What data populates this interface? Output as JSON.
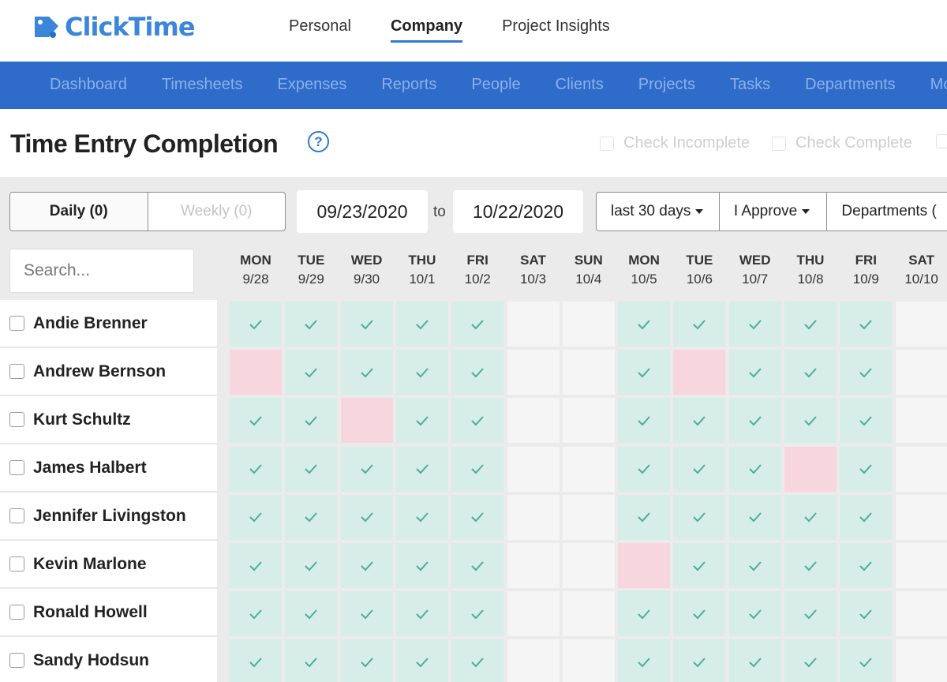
{
  "app": {
    "logo_text": "ClickTime",
    "logo_icon": "tag-icon",
    "brand_color": "#3c86d9"
  },
  "top_nav": [
    {
      "label": "Personal",
      "active": false
    },
    {
      "label": "Company",
      "active": true
    },
    {
      "label": "Project Insights",
      "active": false
    }
  ],
  "main_nav": [
    "Dashboard",
    "Timesheets",
    "Expenses",
    "Reports",
    "People",
    "Clients",
    "Projects",
    "Tasks",
    "Departments",
    "Mo"
  ],
  "page": {
    "title": "Time Entry Completion",
    "help_icon": "question-circle-icon",
    "check_incomplete_label": "Check Incomplete",
    "check_complete_label": "Check Complete"
  },
  "filters": {
    "daily_label": "Daily (0)",
    "weekly_label": "Weekly (0)",
    "start_date": "09/23/2020",
    "to_label": "to",
    "end_date": "10/22/2020",
    "range_label": "last 30 days",
    "approve_label": "I Approve",
    "departments_label": "Departments ("
  },
  "search": {
    "placeholder": "Search..."
  },
  "days": [
    {
      "dow": "MON",
      "date": "9/28",
      "weekend": false
    },
    {
      "dow": "TUE",
      "date": "9/29",
      "weekend": false
    },
    {
      "dow": "WED",
      "date": "9/30",
      "weekend": false
    },
    {
      "dow": "THU",
      "date": "10/1",
      "weekend": false
    },
    {
      "dow": "FRI",
      "date": "10/2",
      "weekend": false
    },
    {
      "dow": "SAT",
      "date": "10/3",
      "weekend": true
    },
    {
      "dow": "SUN",
      "date": "10/4",
      "weekend": true
    },
    {
      "dow": "MON",
      "date": "10/5",
      "weekend": false
    },
    {
      "dow": "TUE",
      "date": "10/6",
      "weekend": false
    },
    {
      "dow": "WED",
      "date": "10/7",
      "weekend": false
    },
    {
      "dow": "THU",
      "date": "10/8",
      "weekend": false
    },
    {
      "dow": "FRI",
      "date": "10/9",
      "weekend": false
    },
    {
      "dow": "SAT",
      "date": "10/10",
      "weekend": true
    }
  ],
  "status_colors": {
    "complete": "#d6ede8",
    "incomplete": "#f8d6e0",
    "none": "#f5f5f5",
    "check": "#4fae96"
  },
  "people": [
    {
      "name": "Andie Brenner",
      "status": [
        "c",
        "c",
        "c",
        "c",
        "c",
        "n",
        "n",
        "c",
        "c",
        "c",
        "c",
        "c",
        "n"
      ]
    },
    {
      "name": "Andrew Bernson",
      "status": [
        "i",
        "c",
        "c",
        "c",
        "c",
        "n",
        "n",
        "c",
        "i",
        "c",
        "c",
        "c",
        "n"
      ]
    },
    {
      "name": "Kurt Schultz",
      "status": [
        "c",
        "c",
        "i",
        "c",
        "c",
        "n",
        "n",
        "c",
        "c",
        "c",
        "c",
        "c",
        "n"
      ]
    },
    {
      "name": "James Halbert",
      "status": [
        "c",
        "c",
        "c",
        "c",
        "c",
        "n",
        "n",
        "c",
        "c",
        "c",
        "i",
        "c",
        "n"
      ]
    },
    {
      "name": "Jennifer Livingston",
      "status": [
        "c",
        "c",
        "c",
        "c",
        "c",
        "n",
        "n",
        "c",
        "c",
        "c",
        "c",
        "c",
        "n"
      ]
    },
    {
      "name": "Kevin Marlone",
      "status": [
        "c",
        "c",
        "c",
        "c",
        "c",
        "n",
        "n",
        "i",
        "c",
        "c",
        "c",
        "c",
        "n"
      ]
    },
    {
      "name": "Ronald Howell",
      "status": [
        "c",
        "c",
        "c",
        "c",
        "c",
        "n",
        "n",
        "c",
        "c",
        "c",
        "c",
        "c",
        "n"
      ]
    },
    {
      "name": "Sandy Hodsun",
      "status": [
        "c",
        "c",
        "c",
        "c",
        "c",
        "n",
        "n",
        "c",
        "c",
        "c",
        "c",
        "c",
        "n"
      ]
    }
  ]
}
